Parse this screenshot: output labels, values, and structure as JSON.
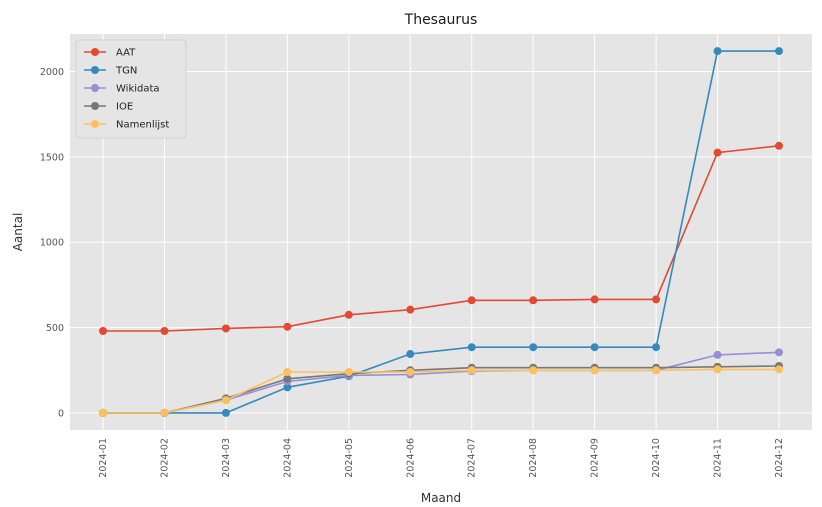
{
  "chart_data": {
    "type": "line",
    "title": "Thesaurus",
    "xlabel": "Maand",
    "ylabel": "Aantal",
    "categories": [
      "2024-01",
      "2024-02",
      "2024-03",
      "2024-04",
      "2024-05",
      "2024-06",
      "2024-07",
      "2024-08",
      "2024-09",
      "2024-10",
      "2024-11",
      "2024-12"
    ],
    "yticks": [
      0,
      500,
      1000,
      1500,
      2000
    ],
    "ylim": [
      -100,
      2220
    ],
    "grid": true,
    "legend_position": "top-left",
    "background_color": "#e5e5e5",
    "grid_color": "#ffffff",
    "series": [
      {
        "name": "AAT",
        "color": "#e24a33",
        "values": [
          480,
          480,
          495,
          505,
          575,
          605,
          660,
          660,
          665,
          665,
          1525,
          1565
        ]
      },
      {
        "name": "TGN",
        "color": "#348abd",
        "values": [
          0,
          0,
          0,
          150,
          215,
          345,
          385,
          385,
          385,
          385,
          2120,
          2120
        ]
      },
      {
        "name": "Wikidata",
        "color": "#988ed5",
        "values": [
          0,
          0,
          75,
          185,
          220,
          225,
          245,
          250,
          250,
          250,
          340,
          355
        ]
      },
      {
        "name": "IOE",
        "color": "#777777",
        "values": [
          0,
          0,
          85,
          200,
          230,
          250,
          265,
          265,
          265,
          265,
          270,
          275
        ]
      },
      {
        "name": "Namenlijst",
        "color": "#fbc15e",
        "values": [
          0,
          0,
          75,
          240,
          240,
          240,
          250,
          250,
          250,
          250,
          255,
          255
        ]
      }
    ]
  }
}
